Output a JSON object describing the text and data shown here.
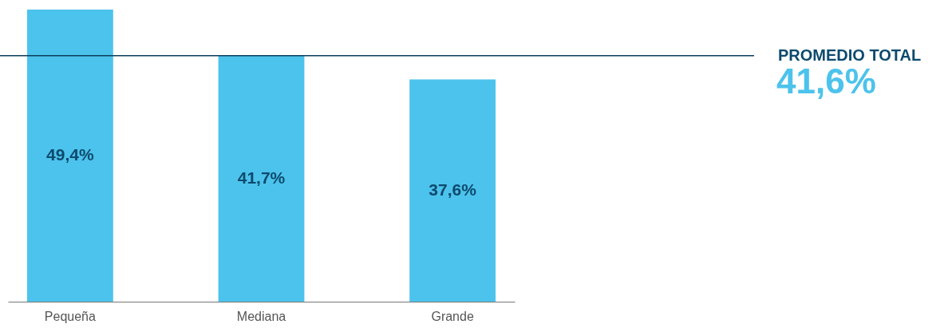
{
  "chart_data": {
    "type": "bar",
    "categories": [
      "Pequeña",
      "Mediana",
      "Grande"
    ],
    "values": [
      49.4,
      41.7,
      37.6
    ],
    "color": "#4cc3ec",
    "value_labels": [
      "49,4%",
      "41,7%",
      "37,6%"
    ],
    "ref_lines": [
      {
        "axis": "y",
        "value": 41.6,
        "label": "PROMEDIO TOTAL",
        "color": "#0d3d5c"
      }
    ],
    "annotations": [
      "41,6%"
    ]
  }
}
